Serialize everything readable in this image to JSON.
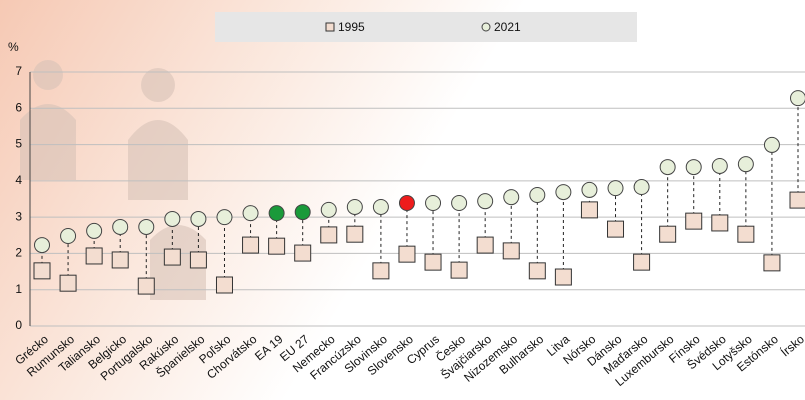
{
  "chart_data": {
    "type": "dot",
    "y_label": "%",
    "categories": [
      "Grécko",
      "Rumunsko",
      "Taliansko",
      "Belgicko",
      "Portugalsko",
      "Rakúsko",
      "Španielsko",
      "Poľsko",
      "Chorvátsko",
      "EA 19",
      "EU 27",
      "Nemecko",
      "Francúzsko",
      "Slovinsko",
      "Slovensko",
      "Cyprus",
      "Česko",
      "Švajčiarsko",
      "Nizozemsko",
      "Bulharsko",
      "Litva",
      "Nórsko",
      "Dánsko",
      "Maďarsko",
      "Luxembursko",
      "Fínsko",
      "Švédsko",
      "Lotyšsko",
      "Estónsko",
      "Írsko"
    ],
    "series": [
      {
        "name": "1995",
        "color": "#f3ddd0",
        "marker": "square",
        "values": [
          1.52,
          1.18,
          1.93,
          1.82,
          1.1,
          1.9,
          1.82,
          1.13,
          2.23,
          2.2,
          2.01,
          2.51,
          2.53,
          1.52,
          1.98,
          1.76,
          1.54,
          2.23,
          2.07,
          1.52,
          1.35,
          3.2,
          2.67,
          1.76,
          2.53,
          2.89,
          2.84,
          2.53,
          1.74,
          3.47
        ]
      },
      {
        "name": "2021",
        "color": "#e7efda",
        "marker": "circle",
        "colors": [
          "#e7efda",
          "#e7efda",
          "#e7efda",
          "#e7efda",
          "#e7efda",
          "#e7efda",
          "#e7efda",
          "#e7efda",
          "#e7efda",
          "#1a9a3a",
          "#1a9a3a",
          "#e7efda",
          "#e7efda",
          "#e7efda",
          "#ee1c1c",
          "#e7efda",
          "#e7efda",
          "#e7efda",
          "#e7efda",
          "#e7efda",
          "#e7efda",
          "#e7efda",
          "#e7efda",
          "#e7efda",
          "#e7efda",
          "#e7efda",
          "#e7efda",
          "#e7efda",
          "#e7efda",
          "#e7efda"
        ],
        "values": [
          2.23,
          2.48,
          2.62,
          2.73,
          2.73,
          2.95,
          2.95,
          3.0,
          3.11,
          3.11,
          3.14,
          3.2,
          3.28,
          3.28,
          3.39,
          3.39,
          3.39,
          3.44,
          3.55,
          3.61,
          3.69,
          3.75,
          3.8,
          3.83,
          4.38,
          4.38,
          4.41,
          4.46,
          4.99,
          6.28
        ]
      }
    ],
    "ylim": [
      0,
      7
    ],
    "yticks": [
      0,
      1,
      2,
      3,
      4,
      5,
      6,
      7
    ],
    "grid": true
  }
}
